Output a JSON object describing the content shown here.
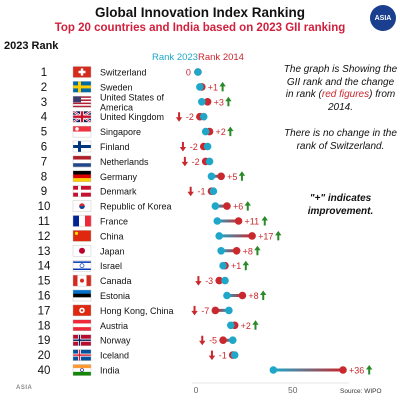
{
  "header": {
    "title": "Global Innovation Index Ranking",
    "subtitle": "Top 20 countries and India based on 2023 GII ranking",
    "rank_column": "2023 Rank",
    "badge": "ASIA"
  },
  "notes": {
    "line1_part1": "The graph is Showing the GII rank and the change in rank (",
    "line1_red": "red figures",
    "line1_part2": ") from 2014.",
    "line2": "There is no change in the rank of Switzerland.",
    "line3": "\"+\" indicates improvement."
  },
  "source": "Source: WIPO",
  "logo_text": "ASIA",
  "chart_data": {
    "type": "dumbbell",
    "title": "Global Innovation Index Ranking",
    "subtitle": "Top 20 countries and India based on 2023 GII ranking",
    "series": [
      {
        "name": "Rank 2023",
        "color": "#1ea7c9"
      },
      {
        "name": "Rank 2014",
        "color": "#c8282e"
      }
    ],
    "x_ticks": [
      0,
      50
    ],
    "xlim": [
      0,
      76
    ],
    "colors": {
      "improve": "#2a8a2a",
      "decline": "#c8282e",
      "rank2023": "#1ea7c9",
      "rank2014": "#c8282e"
    },
    "rows": [
      {
        "rank": 1,
        "country": "Switzerland",
        "flag": "ch",
        "rank2023": 1,
        "rank2014": 1,
        "change_label": "0"
      },
      {
        "rank": 2,
        "country": "Sweden",
        "flag": "se",
        "rank2023": 2,
        "rank2014": 3,
        "change_label": "+1"
      },
      {
        "rank": 3,
        "country": "United States of America",
        "flag": "us",
        "rank2023": 3,
        "rank2014": 6,
        "change_label": "+3"
      },
      {
        "rank": 4,
        "country": "United Kingdom",
        "flag": "gb",
        "rank2023": 4,
        "rank2014": 2,
        "change_label": "-2"
      },
      {
        "rank": 5,
        "country": "Singapore",
        "flag": "sg",
        "rank2023": 5,
        "rank2014": 7,
        "change_label": "+2"
      },
      {
        "rank": 6,
        "country": "Finland",
        "flag": "fi",
        "rank2023": 6,
        "rank2014": 4,
        "change_label": "-2"
      },
      {
        "rank": 7,
        "country": "Netherlands",
        "flag": "nl",
        "rank2023": 7,
        "rank2014": 5,
        "change_label": "-2"
      },
      {
        "rank": 8,
        "country": "Germany",
        "flag": "de",
        "rank2023": 8,
        "rank2014": 13,
        "change_label": "+5"
      },
      {
        "rank": 9,
        "country": "Denmark",
        "flag": "dk",
        "rank2023": 9,
        "rank2014": 8,
        "change_label": "-1"
      },
      {
        "rank": 10,
        "country": "Republic of Korea",
        "flag": "kr",
        "rank2023": 10,
        "rank2014": 16,
        "change_label": "+6"
      },
      {
        "rank": 11,
        "country": "France",
        "flag": "fr",
        "rank2023": 11,
        "rank2014": 22,
        "change_label": "+11"
      },
      {
        "rank": 12,
        "country": "China",
        "flag": "cn",
        "rank2023": 12,
        "rank2014": 29,
        "change_label": "+17"
      },
      {
        "rank": 13,
        "country": "Japan",
        "flag": "jp",
        "rank2023": 13,
        "rank2014": 21,
        "change_label": "+8"
      },
      {
        "rank": 14,
        "country": "Israel",
        "flag": "il",
        "rank2023": 14,
        "rank2014": 15,
        "change_label": "+1"
      },
      {
        "rank": 15,
        "country": "Canada",
        "flag": "ca",
        "rank2023": 15,
        "rank2014": 12,
        "change_label": "-3"
      },
      {
        "rank": 16,
        "country": "Estonia",
        "flag": "ee",
        "rank2023": 16,
        "rank2014": 24,
        "change_label": "+8"
      },
      {
        "rank": 17,
        "country": "Hong Kong, China",
        "flag": "hk",
        "rank2023": 17,
        "rank2014": 10,
        "change_label": "-7"
      },
      {
        "rank": 18,
        "country": "Austria",
        "flag": "at",
        "rank2023": 18,
        "rank2014": 20,
        "change_label": "+2"
      },
      {
        "rank": 19,
        "country": "Norway",
        "flag": "no",
        "rank2023": 19,
        "rank2014": 14,
        "change_label": "-5"
      },
      {
        "rank": 20,
        "country": "Iceland",
        "flag": "is",
        "rank2023": 20,
        "rank2014": 19,
        "change_label": "-1"
      },
      {
        "rank": 40,
        "country": "India",
        "flag": "in",
        "rank2023": 40,
        "rank2014": 76,
        "change_label": "+36"
      }
    ]
  }
}
